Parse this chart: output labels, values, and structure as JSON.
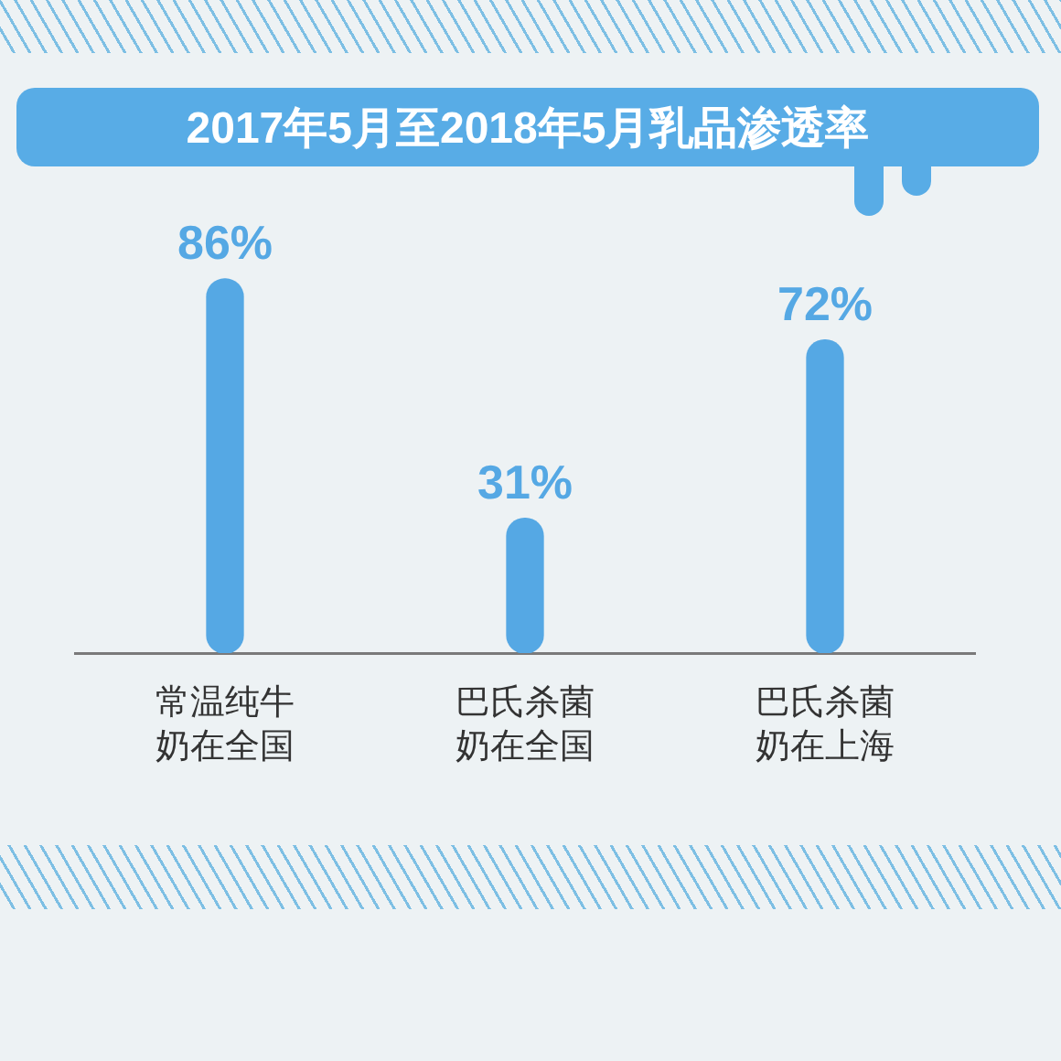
{
  "chart_data": {
    "type": "bar",
    "title": "2017年5月至2018年5月乳品渗透率",
    "categories": [
      "常温纯牛奶在全国",
      "巴氏杀菌奶在全国",
      "巴氏杀菌奶在上海"
    ],
    "values": [
      86,
      31,
      72
    ],
    "color": "#55a8e4",
    "value_labels": [
      "86%",
      "31%",
      "72%"
    ],
    "tick_labels": "x"
  }
}
